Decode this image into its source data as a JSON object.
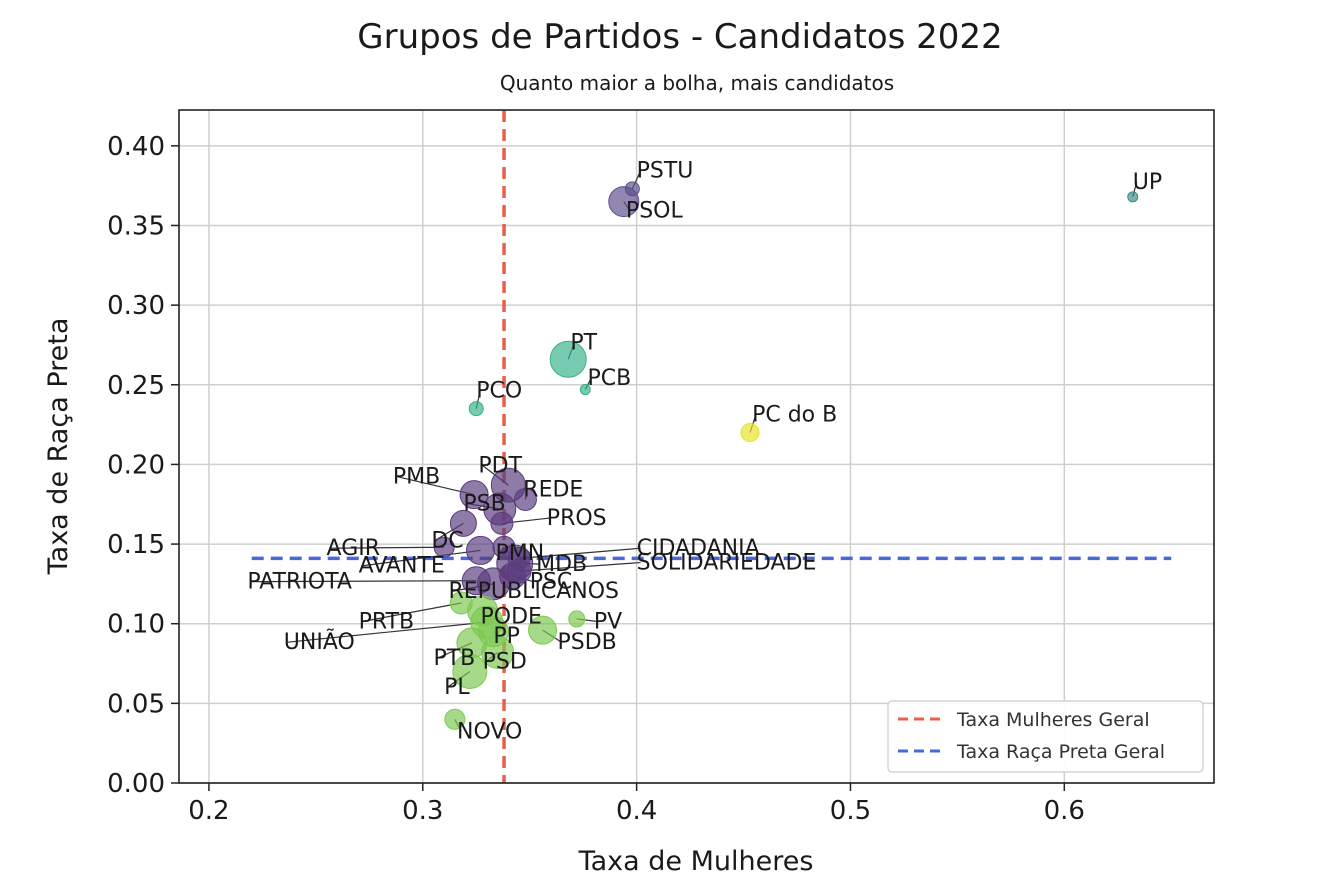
{
  "chart_data": {
    "type": "scatter",
    "title": "Grupos de Partidos - Candidatos 2022",
    "subtitle": "Quanto maior a bolha, mais candidatos",
    "xlabel": "Taxa de Mulheres",
    "ylabel": "Taxa de Raça Preta",
    "xlim": [
      0.186,
      0.67
    ],
    "ylim": [
      0.0,
      0.4225
    ],
    "xticks": [
      "0.2",
      "0.3",
      "0.4",
      "0.5",
      "0.6"
    ],
    "yticks": [
      "0.00",
      "0.05",
      "0.10",
      "0.15",
      "0.20",
      "0.25",
      "0.30",
      "0.35",
      "0.40"
    ],
    "grid": true,
    "legend_position": "lower-right",
    "reference_lines": [
      {
        "name": "Taxa Mulheres Geral",
        "orientation": "vertical",
        "value": 0.338,
        "color": "#e8604c"
      },
      {
        "name": "Taxa Raça Preta Geral",
        "orientation": "horizontal",
        "value": 0.141,
        "from": 0.22,
        "to": 0.65,
        "color": "#4a68d8"
      }
    ],
    "points": [
      {
        "name": "PSTU",
        "x": 0.398,
        "y": 0.373,
        "size": 7,
        "color": "#5c4e8f",
        "lx": 0.4,
        "ly": 0.38
      },
      {
        "name": "PSOL",
        "x": 0.394,
        "y": 0.365,
        "size": 15,
        "color": "#5c4e8f",
        "lx": 0.395,
        "ly": 0.355
      },
      {
        "name": "UP",
        "x": 0.632,
        "y": 0.368,
        "size": 5,
        "color": "#3e8a85",
        "lx": 0.632,
        "ly": 0.373
      },
      {
        "name": "PT",
        "x": 0.368,
        "y": 0.266,
        "size": 18,
        "color": "#37b28a",
        "lx": 0.369,
        "ly": 0.272
      },
      {
        "name": "PCB",
        "x": 0.376,
        "y": 0.247,
        "size": 5,
        "color": "#37b28a",
        "lx": 0.377,
        "ly": 0.25
      },
      {
        "name": "PCO",
        "x": 0.325,
        "y": 0.235,
        "size": 7,
        "color": "#37b28a",
        "lx": 0.325,
        "ly": 0.242
      },
      {
        "name": "PC do B",
        "x": 0.453,
        "y": 0.22,
        "size": 9,
        "color": "#e8e326",
        "lx": 0.454,
        "ly": 0.227
      },
      {
        "name": "PDT",
        "x": 0.34,
        "y": 0.187,
        "size": 17,
        "color": "#5a3c7e",
        "lx": 0.326,
        "ly": 0.195
      },
      {
        "name": "PMB",
        "x": 0.324,
        "y": 0.181,
        "size": 14,
        "color": "#5a3c7e",
        "lx": 0.286,
        "ly": 0.188
      },
      {
        "name": "REDE",
        "x": 0.348,
        "y": 0.178,
        "size": 11,
        "color": "#5a3c7e",
        "lx": 0.347,
        "ly": 0.18
      },
      {
        "name": "PSB",
        "x": 0.336,
        "y": 0.172,
        "size": 16,
        "color": "#5a3c7e",
        "lx": 0.319,
        "ly": 0.171
      },
      {
        "name": "PROS",
        "x": 0.337,
        "y": 0.163,
        "size": 11,
        "color": "#5a3c7e",
        "lx": 0.358,
        "ly": 0.162
      },
      {
        "name": "DC",
        "x": 0.319,
        "y": 0.163,
        "size": 13,
        "color": "#5a3c7e",
        "lx": 0.304,
        "ly": 0.148
      },
      {
        "name": "AGIR",
        "x": 0.31,
        "y": 0.148,
        "size": 10,
        "color": "#5a3c7e",
        "lx": 0.255,
        "ly": 0.143
      },
      {
        "name": "PMN",
        "x": 0.338,
        "y": 0.148,
        "size": 11,
        "color": "#5a3c7e",
        "lx": 0.334,
        "ly": 0.14
      },
      {
        "name": "AVANTE",
        "x": 0.327,
        "y": 0.146,
        "size": 14,
        "color": "#5a3c7e",
        "lx": 0.27,
        "ly": 0.132
      },
      {
        "name": "CIDADANIA",
        "x": 0.345,
        "y": 0.141,
        "size": 11,
        "color": "#5a3c7e",
        "lx": 0.4,
        "ly": 0.143
      },
      {
        "name": "MDB",
        "x": 0.343,
        "y": 0.138,
        "size": 18,
        "color": "#5a3c7e",
        "lx": 0.353,
        "ly": 0.133
      },
      {
        "name": "SOLIDARIEDADE",
        "x": 0.345,
        "y": 0.133,
        "size": 12,
        "color": "#5a3c7e",
        "lx": 0.4,
        "ly": 0.134
      },
      {
        "name": "PSC",
        "x": 0.342,
        "y": 0.13,
        "size": 13,
        "color": "#5a3c7e",
        "lx": 0.35,
        "ly": 0.122
      },
      {
        "name": "PATRIOTA",
        "x": 0.325,
        "y": 0.127,
        "size": 14,
        "color": "#5a3c7e",
        "lx": 0.218,
        "ly": 0.122
      },
      {
        "name": "REPUBLICANOS",
        "x": 0.333,
        "y": 0.125,
        "size": 16,
        "color": "#5a3c7e",
        "lx": 0.312,
        "ly": 0.116
      },
      {
        "name": "PRTB",
        "x": 0.318,
        "y": 0.113,
        "size": 11,
        "color": "#7cc850",
        "lx": 0.27,
        "ly": 0.097
      },
      {
        "name": "PODE",
        "x": 0.328,
        "y": 0.108,
        "size": 15,
        "color": "#7cc850",
        "lx": 0.327,
        "ly": 0.1
      },
      {
        "name": "PV",
        "x": 0.372,
        "y": 0.103,
        "size": 8,
        "color": "#7cc850",
        "lx": 0.38,
        "ly": 0.097
      },
      {
        "name": "UNIÃO",
        "x": 0.33,
        "y": 0.101,
        "size": 16,
        "color": "#7cc850",
        "lx": 0.235,
        "ly": 0.084
      },
      {
        "name": "PP",
        "x": 0.333,
        "y": 0.095,
        "size": 15,
        "color": "#7cc850",
        "lx": 0.333,
        "ly": 0.088
      },
      {
        "name": "PSDB",
        "x": 0.356,
        "y": 0.096,
        "size": 14,
        "color": "#7cc850",
        "lx": 0.363,
        "ly": 0.084
      },
      {
        "name": "PTB",
        "x": 0.323,
        "y": 0.088,
        "size": 15,
        "color": "#7cc850",
        "lx": 0.305,
        "ly": 0.074
      },
      {
        "name": "PSD",
        "x": 0.335,
        "y": 0.082,
        "size": 16,
        "color": "#7cc850",
        "lx": 0.328,
        "ly": 0.072
      },
      {
        "name": "PL",
        "x": 0.322,
        "y": 0.07,
        "size": 17,
        "color": "#7cc850",
        "lx": 0.31,
        "ly": 0.056
      },
      {
        "name": "NOVO",
        "x": 0.315,
        "y": 0.04,
        "size": 10,
        "color": "#7cc850",
        "lx": 0.316,
        "ly": 0.028
      }
    ]
  }
}
